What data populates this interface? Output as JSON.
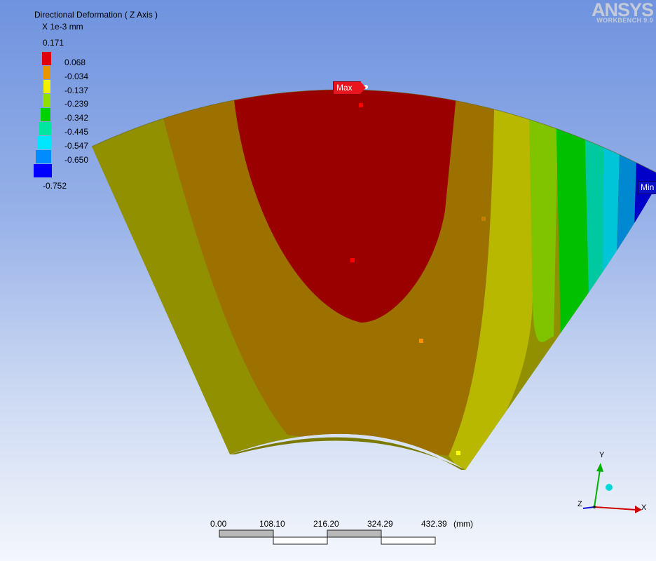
{
  "legend": {
    "title": "Directional Deformation ( Z Axis )",
    "units": "X 1e-3 mm",
    "max_value": "0.171",
    "min_value": "-0.752",
    "levels": [
      "0.068",
      "-0.034",
      "-0.137",
      "-0.239",
      "-0.342",
      "-0.445",
      "-0.547",
      "-0.650"
    ],
    "colors": [
      "#e0000c",
      "#e89600",
      "#f0f000",
      "#8fe000",
      "#00d200",
      "#00e6a0",
      "#00e6ff",
      "#008cff",
      "#0000ff"
    ]
  },
  "brand": {
    "name": "ANSYS",
    "product": "WORKBENCH 9.0"
  },
  "markers": {
    "max_label": "Max",
    "min_label": "Min"
  },
  "scale_bar": {
    "ticks": [
      "0.00",
      "108.10",
      "216.20",
      "324.29",
      "432.39"
    ],
    "unit": "(mm)"
  },
  "triad": {
    "x_label": "X",
    "y_label": "Y",
    "z_label": "Z"
  }
}
